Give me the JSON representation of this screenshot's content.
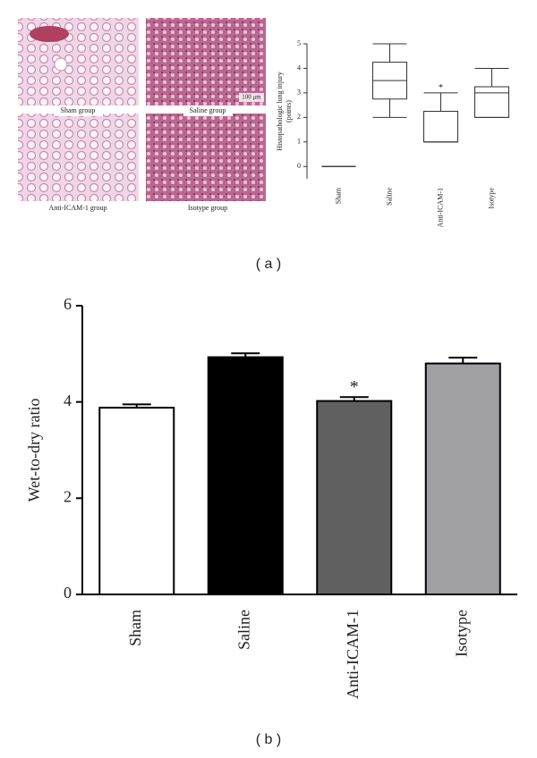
{
  "figure_labels": [
    "( a )",
    "( b )"
  ],
  "micrographs": {
    "captions": [
      "Sham group",
      "Saline group",
      "Anti-ICAM-1 group",
      "Isotype group"
    ],
    "scale_bar": "100 μm"
  },
  "chart_data": [
    {
      "type": "box",
      "ylabel": [
        "Histopathologic lung injury",
        "(points)"
      ],
      "categories": [
        "Sham",
        "Saline",
        "Anti-ICAM-1",
        "Isotype"
      ],
      "min": [
        0,
        2,
        1,
        2
      ],
      "q1": [
        0,
        2.75,
        1,
        2
      ],
      "median": [
        0,
        3.5,
        1,
        3
      ],
      "q3": [
        0,
        4.25,
        2.25,
        3.25
      ],
      "max": [
        0,
        5,
        3,
        4
      ],
      "annotation_labels": [
        null,
        null,
        "*",
        null
      ],
      "ylim": [
        -0.5,
        5
      ],
      "yticks": [
        0,
        1,
        2,
        3,
        4,
        5
      ]
    },
    {
      "type": "bar",
      "ylabel": "Wet-to-dry ratio",
      "categories": [
        "Sham",
        "Saline",
        "Anti-ICAM-1",
        "Isotype"
      ],
      "values": [
        3.88,
        4.93,
        4.02,
        4.8
      ],
      "errors": [
        0.07,
        0.08,
        0.08,
        0.12
      ],
      "colors": [
        "#ffffff",
        "#000000",
        "#606060",
        "#a0a0a4"
      ],
      "annotation_labels": [
        null,
        null,
        "*",
        null
      ],
      "ylim": [
        0,
        6
      ],
      "yticks": [
        0,
        2,
        4,
        6
      ]
    }
  ]
}
